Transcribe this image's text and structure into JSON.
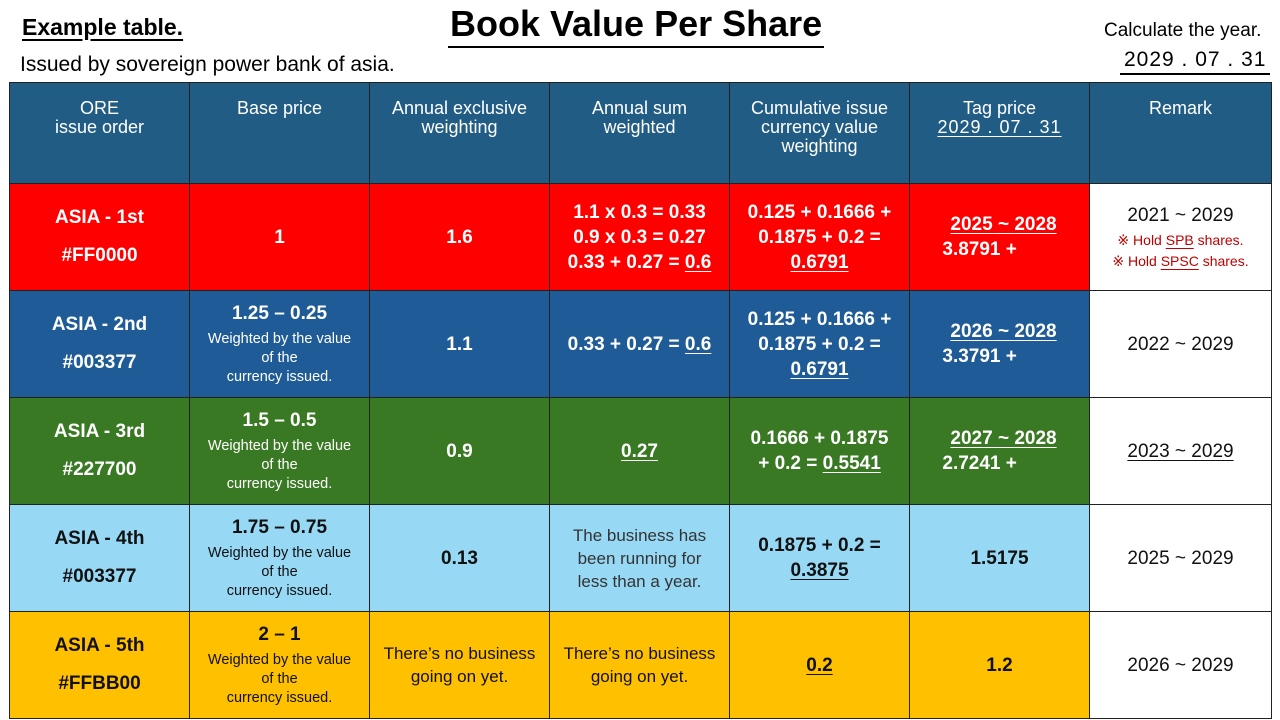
{
  "header": {
    "left_title": "Example table.",
    "left_subtitle": "Issued by sovereign power bank of asia.",
    "main_title": "Book Value Per Share",
    "calc_label": "Calculate the year.",
    "calc_date": "2029 . 07 . 31"
  },
  "columns": {
    "order_l1": "ORE",
    "order_l2": "issue order",
    "base": "Base price",
    "excl_l1": "Annual exclusive",
    "excl_l2": "weighting",
    "sum_l1": "Annual sum",
    "sum_l2": "weighted",
    "cum_l1": "Cumulative issue",
    "cum_l2": "currency value",
    "cum_l3": "weighting",
    "tag_l1": "Tag price",
    "tag_date": "2029 . 07 . 31",
    "remark": "Remark"
  },
  "colors": {
    "header": "#215C84",
    "row1": "#FF0000",
    "row2": "#1F5B96",
    "row3": "#3A7923",
    "row4": "#97D9F5",
    "row5": "#FFC000"
  },
  "rows": [
    {
      "name": "ASIA - 1st",
      "code": "#FF0000",
      "base": "1",
      "excl": "1.6",
      "sum_l1": "1.1 x 0.3 = 0.33",
      "sum_l2": "0.9 x 0.3 = 0.27",
      "sum_l3a": "0.33 + 0.27 = ",
      "sum_l3b": "0.6",
      "cum_l1": "0.125 + 0.1666 +",
      "cum_l2": "0.1875 + 0.2 =",
      "cum_l3": "0.6791",
      "tag_from": "2025",
      "tag_sep": " ~ ",
      "tag_to": "2028",
      "tag_val": "3.8791 +",
      "remark": "2021 ~ 2029",
      "note1_a": "※ Hold ",
      "note1_b": "SPB",
      "note1_c": " shares.",
      "note2_a": "※ Hold ",
      "note2_b": "SPSC",
      "note2_c": " shares."
    },
    {
      "name": "ASIA - 2nd",
      "code": "#003377",
      "base": "1.25 – 0.25",
      "base_note_l1": "Weighted by the value",
      "base_note_l2": "of the",
      "base_note_l3": "currency issued.",
      "excl": "1.1",
      "sum_a": "0.33 + 0.27 = ",
      "sum_b": "0.6",
      "cum_l1": "0.125 + 0.1666 +",
      "cum_l2": "0.1875 + 0.2 =",
      "cum_l3": "0.6791",
      "tag_from": "2026",
      "tag_sep": " ~ ",
      "tag_to": "2028",
      "tag_val": "3.3791 +",
      "remark": "2022 ~ 2029"
    },
    {
      "name": "ASIA - 3rd",
      "code": "#227700",
      "base": "1.5 – 0.5",
      "base_note_l1": "Weighted by the value",
      "base_note_l2": "of the",
      "base_note_l3": "currency issued.",
      "excl": "0.9",
      "sum": "0.27",
      "cum_l1": "0.1666 + 0.1875",
      "cum_l2a": "+ 0.2 = ",
      "cum_l2b": "0.5541",
      "tag_from": "2027",
      "tag_sep": " ~ ",
      "tag_to": "2028",
      "tag_val": "2.7241 +",
      "remark": "2023 ~ 2029"
    },
    {
      "name": "ASIA - 4th",
      "code": "#003377",
      "base": "1.75 – 0.75",
      "base_note_l1": "Weighted by the value",
      "base_note_l2": "of the",
      "base_note_l3": "currency issued.",
      "excl": "0.13",
      "sum_l1": "The business has",
      "sum_l2": "been running for",
      "sum_l3": "less than a year.",
      "cum_l1": "0.1875 + 0.2 =",
      "cum_l2": "0.3875",
      "tag_val": "1.5175",
      "remark": "2025 ~ 2029"
    },
    {
      "name": "ASIA - 5th",
      "code": "#FFBB00",
      "base": "2 – 1",
      "base_note_l1": "Weighted by the value",
      "base_note_l2": "of the",
      "base_note_l3": "currency issued.",
      "excl_l1": "There’s no business",
      "excl_l2": "going on yet.",
      "sum_l1": "There’s no business",
      "sum_l2": "going on yet.",
      "cum": "0.2",
      "tag_val": "1.2",
      "remark": "2026 ~ 2029"
    }
  ]
}
